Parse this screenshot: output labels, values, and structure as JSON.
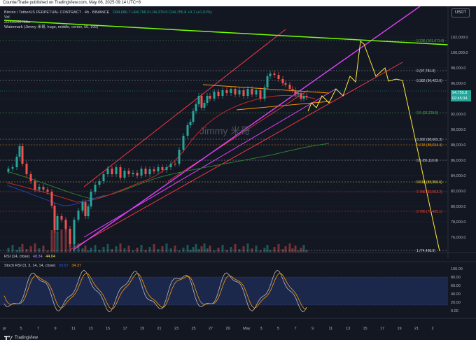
{
  "header": {
    "published": "CounterTrade published on TradingView.com, May 06, 2025 09:14 UTC+8"
  },
  "legend": {
    "symbol": "Bitcoin / TetherUS PERPETUAL CONTRACT · 4h · BINANCE",
    "ohlc": "O94,686.7  H94,766.0  L94,379.0  C94,755.8  +9.1 (+0.01%)",
    "volume": "Vol",
    "ma_line": "20/50/200 MAs",
    "watermark_line": "Watermark (Jimmy 米哥, huge, middle, center, 50, 100)",
    "watermark_text": "Jimmy 米哥"
  },
  "currency_button": "USDT",
  "price_axis": {
    "ticks": [
      "102,000.0",
      "100,000.0",
      "98,000.0",
      "96,000.0",
      "94,000.0",
      "92,000.0",
      "90,000.0",
      "88,000.0",
      "86,000.0",
      "84,000.0",
      "82,000.0",
      "80,000.0",
      "78,000.0",
      "76,000.0"
    ],
    "current_price": "94,755.8",
    "countdown": "02:45:34"
  },
  "fib_labels": [
    {
      "text": "0.236 (101,671.9)",
      "color": "#4caf50"
    },
    {
      "text": "0 (97,781.9)",
      "color": "#d1d4dc"
    },
    {
      "text": "0.382 (96,422.6)",
      "color": "#d1d4dc"
    },
    {
      "text": "0.5 (92,229.5)",
      "color": "#4caf50"
    },
    {
      "text": "0.382 (88,665.3)",
      "color": "#d1d4dc"
    },
    {
      "text": "0.618 (88,034.4)",
      "color": "#ff9800"
    },
    {
      "text": "0.5 (86,110.9)",
      "color": "#d1d4dc"
    },
    {
      "text": "0.618 (83,356.6)",
      "color": "#ffeb3b"
    },
    {
      "text": "0.786 (82,063.2)",
      "color": "#f44336"
    },
    {
      "text": "0.786 (79,435.1)",
      "color": "#f44336"
    },
    {
      "text": "1 (74,498.9)",
      "color": "#d1d4dc"
    }
  ],
  "rsi": {
    "label": "RSI (14, close)",
    "value1": "48.34",
    "value2": "44.04"
  },
  "stoch": {
    "label": "Stoch RSI (3, 3, 14, 14, close)",
    "value1": "33.67",
    "value2": "34.37",
    "ticks": [
      "100.00",
      "80.00",
      "60.00",
      "40.00",
      "20.00",
      "0.00"
    ]
  },
  "x_axis": [
    "pr",
    "5",
    "7",
    "9",
    "11",
    "13",
    "15",
    "17",
    "19",
    "21",
    "23",
    "25",
    "27",
    "29",
    "May",
    "3",
    "5",
    "7",
    "9",
    "11",
    "13",
    "15",
    "17",
    "19",
    "21",
    "2"
  ],
  "footer": {
    "brand": "TradingView"
  },
  "colors": {
    "background": "#131722",
    "up": "#26a69a",
    "down": "#ef5350",
    "channel": "#f23645",
    "magenta": "#e040fb",
    "projection": "#ffeb3b",
    "trend_green": "#76ff03",
    "stoch_k": "#bbbbbb",
    "stoch_d": "#ff9800"
  }
}
